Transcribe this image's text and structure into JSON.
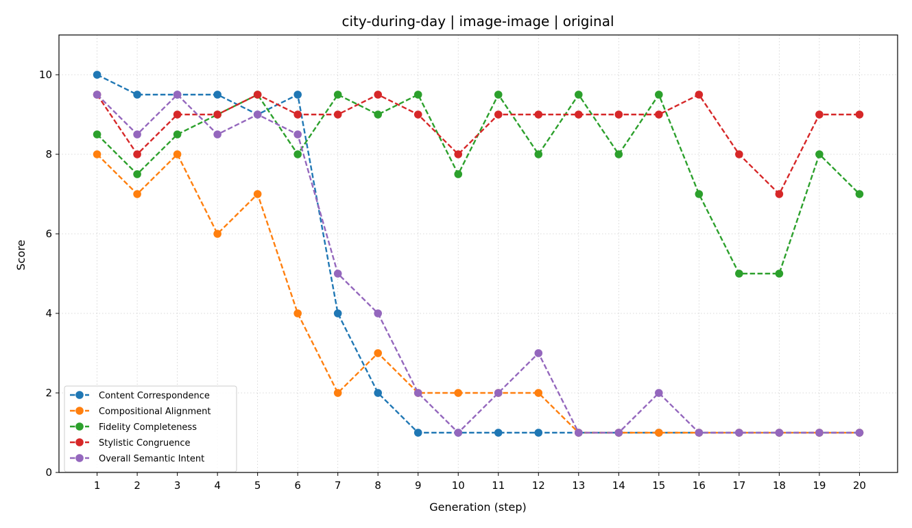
{
  "chart_data": {
    "type": "line",
    "title": "city-during-day | image-image | original",
    "xlabel": "Generation (step)",
    "ylabel": "Score",
    "x": [
      1,
      2,
      3,
      4,
      5,
      6,
      7,
      8,
      9,
      10,
      11,
      12,
      13,
      14,
      15,
      16,
      17,
      18,
      19,
      20
    ],
    "xlim": [
      0.05,
      20.95
    ],
    "ylim": [
      0,
      11
    ],
    "yticks": [
      0,
      2,
      4,
      6,
      8,
      10
    ],
    "grid": true,
    "legend_position": "bottom-left",
    "series": [
      {
        "name": "Content Correspondence",
        "color": "#1f77b4",
        "values": [
          10,
          9.5,
          9.5,
          9.5,
          9,
          9.5,
          4,
          2,
          1,
          1,
          1,
          1,
          1,
          1,
          1,
          1,
          1,
          1,
          1,
          1
        ]
      },
      {
        "name": "Compositional Alignment",
        "color": "#ff7f0e",
        "values": [
          8,
          7,
          8,
          6,
          7,
          4,
          2,
          3,
          2,
          2,
          2,
          2,
          1,
          1,
          1,
          1,
          1,
          1,
          1,
          1
        ]
      },
      {
        "name": "Fidelity Completeness",
        "color": "#2ca02c",
        "values": [
          8.5,
          7.5,
          8.5,
          9,
          9.5,
          8,
          9.5,
          9,
          9.5,
          7.5,
          9.5,
          8,
          9.5,
          8,
          9.5,
          7,
          5,
          5,
          8,
          7
        ]
      },
      {
        "name": "Stylistic Congruence",
        "color": "#d62728",
        "values": [
          9.5,
          8,
          9,
          9,
          9.5,
          9,
          9,
          9.5,
          9,
          8,
          9,
          9,
          9,
          9,
          9,
          9.5,
          8,
          7,
          9,
          9
        ]
      },
      {
        "name": "Overall Semantic Intent",
        "color": "#9467bd",
        "values": [
          9.5,
          8.5,
          9.5,
          8.5,
          9,
          8.5,
          5,
          4,
          2,
          1,
          2,
          3,
          1,
          1,
          2,
          1,
          1,
          1,
          1,
          1
        ]
      }
    ]
  }
}
